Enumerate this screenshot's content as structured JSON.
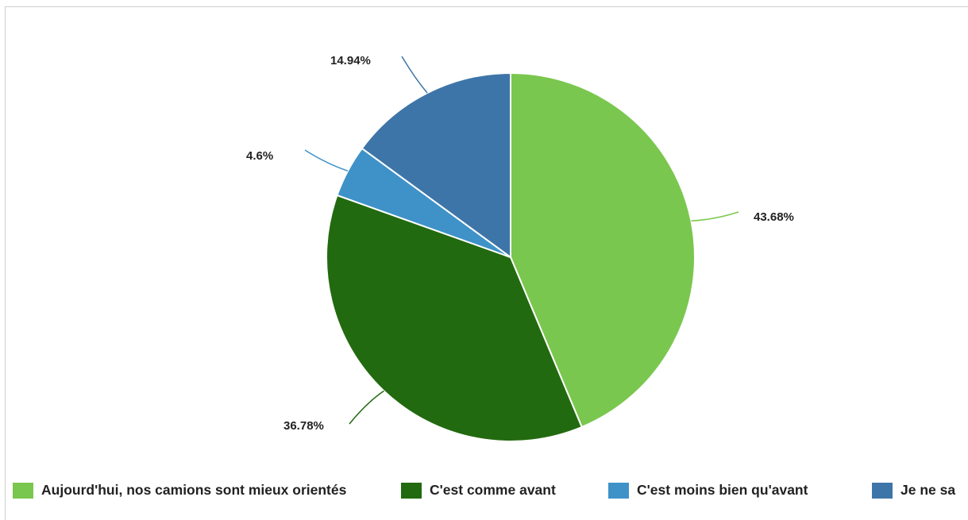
{
  "chart_data": {
    "type": "pie",
    "categories": [
      "Aujourd'hui, nos camions sont mieux orientés",
      "C'est comme avant",
      "C'est moins bien qu'avant",
      "Je ne sa"
    ],
    "values": [
      43.68,
      36.78,
      4.6,
      14.94
    ],
    "value_labels": [
      "43.68%",
      "36.78%",
      "4.6%",
      "14.94%"
    ],
    "colors": [
      "#7ac74f",
      "#226a0f",
      "#3e92c8",
      "#3e75a8"
    ],
    "start_angle_deg": 0,
    "direction": "clockwise",
    "legend_position": "bottom"
  },
  "legend": {
    "items": [
      {
        "label": "Aujourd'hui, nos camions sont mieux orientés",
        "color": "#7ac74f"
      },
      {
        "label": "C'est comme avant",
        "color": "#226a0f"
      },
      {
        "label": "C'est moins bien qu'avant",
        "color": "#3e92c8"
      },
      {
        "label": "Je ne sa",
        "color": "#3e75a8"
      }
    ]
  }
}
